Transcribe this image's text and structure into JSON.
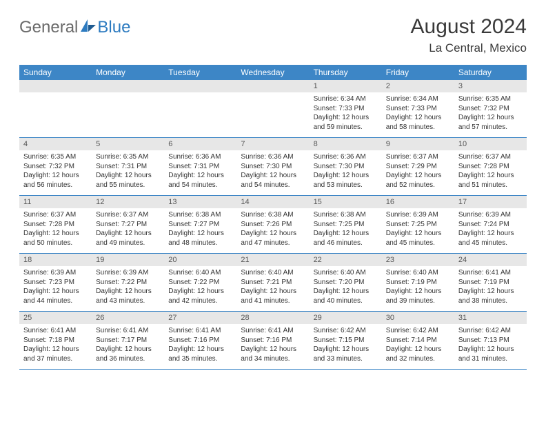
{
  "brand": {
    "text1": "General",
    "text2": "Blue"
  },
  "title": "August 2024",
  "location": "La Central, Mexico",
  "colors": {
    "header_bg": "#3d86c6",
    "header_text": "#ffffff",
    "daynum_bg": "#e7e7e7",
    "border": "#3d86c6",
    "brand_gray": "#6a6a6a",
    "brand_blue": "#2d7bc0"
  },
  "weekdays": [
    "Sunday",
    "Monday",
    "Tuesday",
    "Wednesday",
    "Thursday",
    "Friday",
    "Saturday"
  ],
  "weeks": [
    [
      {
        "n": "",
        "sr": "",
        "ss": "",
        "dl": ""
      },
      {
        "n": "",
        "sr": "",
        "ss": "",
        "dl": ""
      },
      {
        "n": "",
        "sr": "",
        "ss": "",
        "dl": ""
      },
      {
        "n": "",
        "sr": "",
        "ss": "",
        "dl": ""
      },
      {
        "n": "1",
        "sr": "Sunrise: 6:34 AM",
        "ss": "Sunset: 7:33 PM",
        "dl": "Daylight: 12 hours and 59 minutes."
      },
      {
        "n": "2",
        "sr": "Sunrise: 6:34 AM",
        "ss": "Sunset: 7:33 PM",
        "dl": "Daylight: 12 hours and 58 minutes."
      },
      {
        "n": "3",
        "sr": "Sunrise: 6:35 AM",
        "ss": "Sunset: 7:32 PM",
        "dl": "Daylight: 12 hours and 57 minutes."
      }
    ],
    [
      {
        "n": "4",
        "sr": "Sunrise: 6:35 AM",
        "ss": "Sunset: 7:32 PM",
        "dl": "Daylight: 12 hours and 56 minutes."
      },
      {
        "n": "5",
        "sr": "Sunrise: 6:35 AM",
        "ss": "Sunset: 7:31 PM",
        "dl": "Daylight: 12 hours and 55 minutes."
      },
      {
        "n": "6",
        "sr": "Sunrise: 6:36 AM",
        "ss": "Sunset: 7:31 PM",
        "dl": "Daylight: 12 hours and 54 minutes."
      },
      {
        "n": "7",
        "sr": "Sunrise: 6:36 AM",
        "ss": "Sunset: 7:30 PM",
        "dl": "Daylight: 12 hours and 54 minutes."
      },
      {
        "n": "8",
        "sr": "Sunrise: 6:36 AM",
        "ss": "Sunset: 7:30 PM",
        "dl": "Daylight: 12 hours and 53 minutes."
      },
      {
        "n": "9",
        "sr": "Sunrise: 6:37 AM",
        "ss": "Sunset: 7:29 PM",
        "dl": "Daylight: 12 hours and 52 minutes."
      },
      {
        "n": "10",
        "sr": "Sunrise: 6:37 AM",
        "ss": "Sunset: 7:28 PM",
        "dl": "Daylight: 12 hours and 51 minutes."
      }
    ],
    [
      {
        "n": "11",
        "sr": "Sunrise: 6:37 AM",
        "ss": "Sunset: 7:28 PM",
        "dl": "Daylight: 12 hours and 50 minutes."
      },
      {
        "n": "12",
        "sr": "Sunrise: 6:37 AM",
        "ss": "Sunset: 7:27 PM",
        "dl": "Daylight: 12 hours and 49 minutes."
      },
      {
        "n": "13",
        "sr": "Sunrise: 6:38 AM",
        "ss": "Sunset: 7:27 PM",
        "dl": "Daylight: 12 hours and 48 minutes."
      },
      {
        "n": "14",
        "sr": "Sunrise: 6:38 AM",
        "ss": "Sunset: 7:26 PM",
        "dl": "Daylight: 12 hours and 47 minutes."
      },
      {
        "n": "15",
        "sr": "Sunrise: 6:38 AM",
        "ss": "Sunset: 7:25 PM",
        "dl": "Daylight: 12 hours and 46 minutes."
      },
      {
        "n": "16",
        "sr": "Sunrise: 6:39 AM",
        "ss": "Sunset: 7:25 PM",
        "dl": "Daylight: 12 hours and 45 minutes."
      },
      {
        "n": "17",
        "sr": "Sunrise: 6:39 AM",
        "ss": "Sunset: 7:24 PM",
        "dl": "Daylight: 12 hours and 45 minutes."
      }
    ],
    [
      {
        "n": "18",
        "sr": "Sunrise: 6:39 AM",
        "ss": "Sunset: 7:23 PM",
        "dl": "Daylight: 12 hours and 44 minutes."
      },
      {
        "n": "19",
        "sr": "Sunrise: 6:39 AM",
        "ss": "Sunset: 7:22 PM",
        "dl": "Daylight: 12 hours and 43 minutes."
      },
      {
        "n": "20",
        "sr": "Sunrise: 6:40 AM",
        "ss": "Sunset: 7:22 PM",
        "dl": "Daylight: 12 hours and 42 minutes."
      },
      {
        "n": "21",
        "sr": "Sunrise: 6:40 AM",
        "ss": "Sunset: 7:21 PM",
        "dl": "Daylight: 12 hours and 41 minutes."
      },
      {
        "n": "22",
        "sr": "Sunrise: 6:40 AM",
        "ss": "Sunset: 7:20 PM",
        "dl": "Daylight: 12 hours and 40 minutes."
      },
      {
        "n": "23",
        "sr": "Sunrise: 6:40 AM",
        "ss": "Sunset: 7:19 PM",
        "dl": "Daylight: 12 hours and 39 minutes."
      },
      {
        "n": "24",
        "sr": "Sunrise: 6:41 AM",
        "ss": "Sunset: 7:19 PM",
        "dl": "Daylight: 12 hours and 38 minutes."
      }
    ],
    [
      {
        "n": "25",
        "sr": "Sunrise: 6:41 AM",
        "ss": "Sunset: 7:18 PM",
        "dl": "Daylight: 12 hours and 37 minutes."
      },
      {
        "n": "26",
        "sr": "Sunrise: 6:41 AM",
        "ss": "Sunset: 7:17 PM",
        "dl": "Daylight: 12 hours and 36 minutes."
      },
      {
        "n": "27",
        "sr": "Sunrise: 6:41 AM",
        "ss": "Sunset: 7:16 PM",
        "dl": "Daylight: 12 hours and 35 minutes."
      },
      {
        "n": "28",
        "sr": "Sunrise: 6:41 AM",
        "ss": "Sunset: 7:16 PM",
        "dl": "Daylight: 12 hours and 34 minutes."
      },
      {
        "n": "29",
        "sr": "Sunrise: 6:42 AM",
        "ss": "Sunset: 7:15 PM",
        "dl": "Daylight: 12 hours and 33 minutes."
      },
      {
        "n": "30",
        "sr": "Sunrise: 6:42 AM",
        "ss": "Sunset: 7:14 PM",
        "dl": "Daylight: 12 hours and 32 minutes."
      },
      {
        "n": "31",
        "sr": "Sunrise: 6:42 AM",
        "ss": "Sunset: 7:13 PM",
        "dl": "Daylight: 12 hours and 31 minutes."
      }
    ]
  ]
}
